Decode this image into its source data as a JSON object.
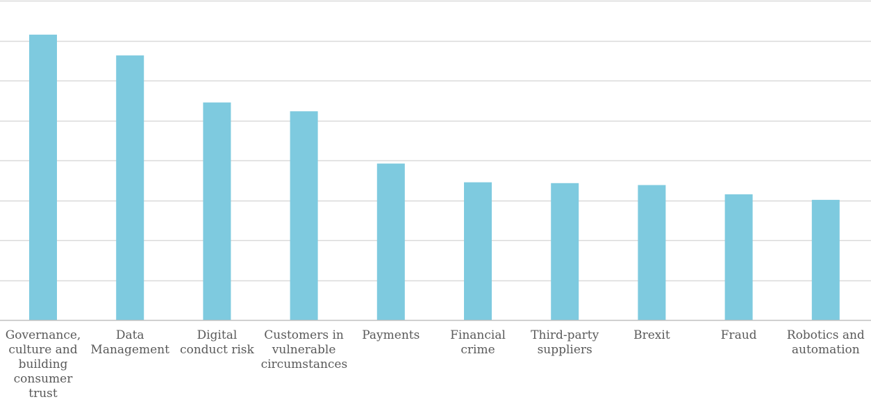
{
  "colors": {
    "bar": "#7ECADF",
    "grid": "#D9D9D9",
    "axis": "#BFBFBF",
    "label": "#595959"
  },
  "chart_data": {
    "type": "bar",
    "categories": [
      "Governance, culture and building consumer trust",
      "Data Management",
      "Digital conduct risk",
      "Customers in vulnerable circumstances",
      "Payments",
      "Financial crime",
      "Third-party suppliers",
      "Brexit",
      "Fraud",
      "Robotics and automation"
    ],
    "series": [
      {
        "values": [
          7.15,
          6.63,
          5.45,
          5.23,
          3.92,
          3.45,
          3.43,
          3.38,
          3.15,
          3.01
        ]
      }
    ],
    "ylim": [
      0,
      8
    ],
    "grid": true,
    "legend": "none",
    "title": "",
    "xlabel": "",
    "ylabel": ""
  }
}
